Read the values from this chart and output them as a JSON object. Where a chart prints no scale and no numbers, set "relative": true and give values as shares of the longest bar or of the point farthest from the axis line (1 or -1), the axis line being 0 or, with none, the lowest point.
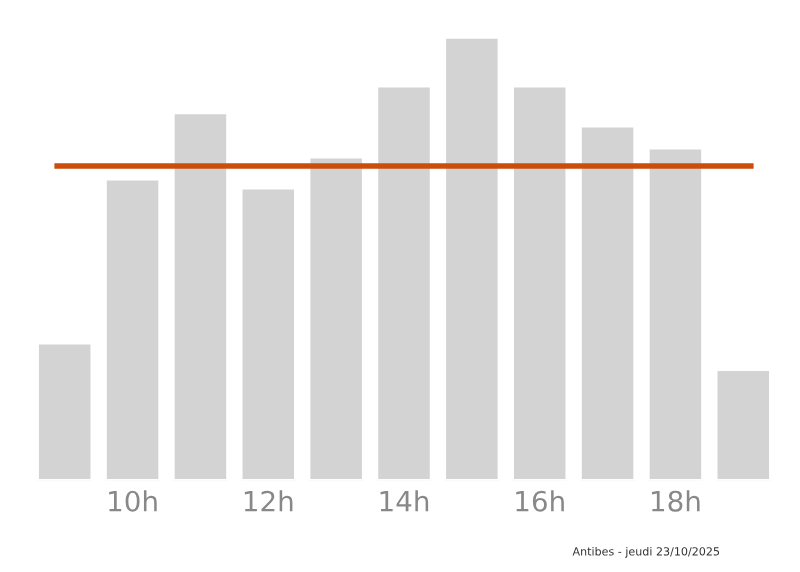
{
  "chart_data": {
    "type": "bar",
    "relative": true,
    "categories": [
      null,
      "10h",
      null,
      "12h",
      null,
      "14h",
      null,
      "16h",
      null,
      "18h",
      null
    ],
    "values": [
      0.31,
      0.68,
      0.83,
      0.66,
      0.73,
      0.89,
      1,
      0.89,
      0.8,
      0.75,
      0.25
    ],
    "color": "#d3d3d3",
    "ref_lines": [
      {
        "axis": "y",
        "value": 0.71,
        "color": "#cc4c0c",
        "line_style": "solid"
      }
    ],
    "grid": false,
    "legend": false,
    "annotations": [
      "Antibes - jeudi 23/10/2025"
    ]
  }
}
